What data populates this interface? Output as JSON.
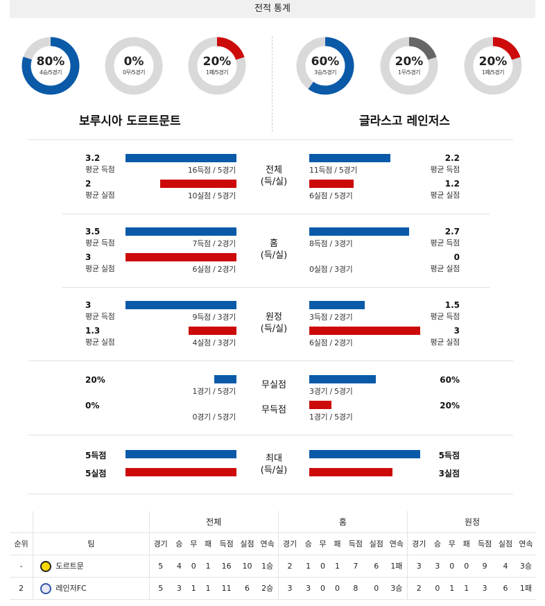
{
  "header": {
    "title": "전적 통계"
  },
  "colors": {
    "blue": "#0a5aa8",
    "red": "#cc0a0a",
    "gray": "#666666",
    "track": "#d9d9d9"
  },
  "donuts": [
    {
      "pct": "80%",
      "record": "4승/5경기",
      "fraction": 0.8,
      "color": "#0a5aa8"
    },
    {
      "pct": "0%",
      "record": "0무/5경기",
      "fraction": 0,
      "color": "#666666"
    },
    {
      "pct": "20%",
      "record": "1패/5경기",
      "fraction": 0.2,
      "color": "#cc0a0a"
    },
    {
      "pct": "60%",
      "record": "3승/5경기",
      "fraction": 0.6,
      "color": "#0a5aa8"
    },
    {
      "pct": "20%",
      "record": "1무/5경기",
      "fraction": 0.2,
      "color": "#666666"
    },
    {
      "pct": "20%",
      "record": "1패/5경기",
      "fraction": 0.2,
      "color": "#cc0a0a"
    }
  ],
  "teams": {
    "home": "보루시아 도르트문트",
    "away": "글라스고 레인저스"
  },
  "sections": {
    "overall": {
      "label": "전체",
      "sub": "(득/실)",
      "home_scored": {
        "value": "3.2",
        "label": "평균 득점",
        "bar_text": "16득점 / 5경기"
      },
      "home_conceded": {
        "value": "2",
        "label": "평균 실점",
        "bar_text": "10실점 / 5경기"
      },
      "away_scored": {
        "value": "2.2",
        "label": "평균 득점",
        "bar_text": "11득점 / 5경기"
      },
      "away_conceded": {
        "value": "1.2",
        "label": "평균 실점",
        "bar_text": "6실점 / 5경기"
      }
    },
    "home": {
      "label": "홈",
      "sub": "(득/실)",
      "home_scored": {
        "value": "3.5",
        "label": "평균 득점",
        "bar_text": "7득점 / 2경기"
      },
      "home_conceded": {
        "value": "3",
        "label": "평균 실점",
        "bar_text": "6실점 / 2경기"
      },
      "away_scored": {
        "value": "2.7",
        "label": "평균 득점",
        "bar_text": "8득점 / 3경기"
      },
      "away_conceded": {
        "value": "0",
        "label": "평균 실점",
        "bar_text": "0실점 / 3경기"
      }
    },
    "away": {
      "label": "원정",
      "sub": "(득/실)",
      "home_scored": {
        "value": "3",
        "label": "평균 득점",
        "bar_text": "9득점 / 3경기"
      },
      "home_conceded": {
        "value": "1.3",
        "label": "평균 실점",
        "bar_text": "4실점 / 3경기"
      },
      "away_scored": {
        "value": "1.5",
        "label": "평균 득점",
        "bar_text": "3득점 / 2경기"
      },
      "away_conceded": {
        "value": "3",
        "label": "평균 실점",
        "bar_text": "6실점 / 2경기"
      }
    },
    "clean": {
      "label_clean": "무실점",
      "label_fail": "무득점",
      "home_clean": {
        "value": "20%",
        "bar_text": "1경기 / 5경기"
      },
      "home_fail": {
        "value": "0%",
        "bar_text": "0경기 / 5경기"
      },
      "away_clean": {
        "value": "60%",
        "bar_text": "3경기 / 5경기"
      },
      "away_fail": {
        "value": "20%",
        "bar_text": "1경기 / 5경기"
      }
    },
    "max": {
      "label": "최대",
      "sub": "(득/실)",
      "home_scored": "5득점",
      "home_conceded": "5실점",
      "away_scored": "5득점",
      "away_conceded": "3실점"
    }
  },
  "bar_fractions": {
    "overall": [
      1.0,
      0.69,
      0.73,
      0.4
    ],
    "home": [
      1.0,
      1.0,
      0.9,
      0.0
    ],
    "away": [
      1.0,
      0.43,
      0.5,
      1.0
    ],
    "clean": [
      0.2,
      0.0,
      0.6,
      0.2
    ],
    "max": [
      1.0,
      1.0,
      1.0,
      0.75
    ]
  },
  "table": {
    "groups": [
      "전체",
      "홈",
      "원정"
    ],
    "columns": {
      "rank": "순위",
      "team": "팀",
      "stats": [
        "경기",
        "승",
        "무",
        "패",
        "득점",
        "실점",
        "연속"
      ]
    },
    "rows": [
      {
        "rank": "-",
        "team": "도르트문",
        "overall": [
          "5",
          "4",
          "0",
          "1",
          "16",
          "10",
          "1승"
        ],
        "home": [
          "2",
          "1",
          "0",
          "1",
          "7",
          "6",
          "1패"
        ],
        "away": [
          "3",
          "3",
          "0",
          "0",
          "9",
          "4",
          "3승"
        ]
      },
      {
        "rank": "2",
        "team": "레인저FC",
        "overall": [
          "5",
          "3",
          "1",
          "1",
          "11",
          "6",
          "2승"
        ],
        "home": [
          "3",
          "3",
          "0",
          "0",
          "8",
          "0",
          "3승"
        ],
        "away": [
          "2",
          "0",
          "1",
          "1",
          "3",
          "6",
          "1패"
        ]
      }
    ]
  }
}
